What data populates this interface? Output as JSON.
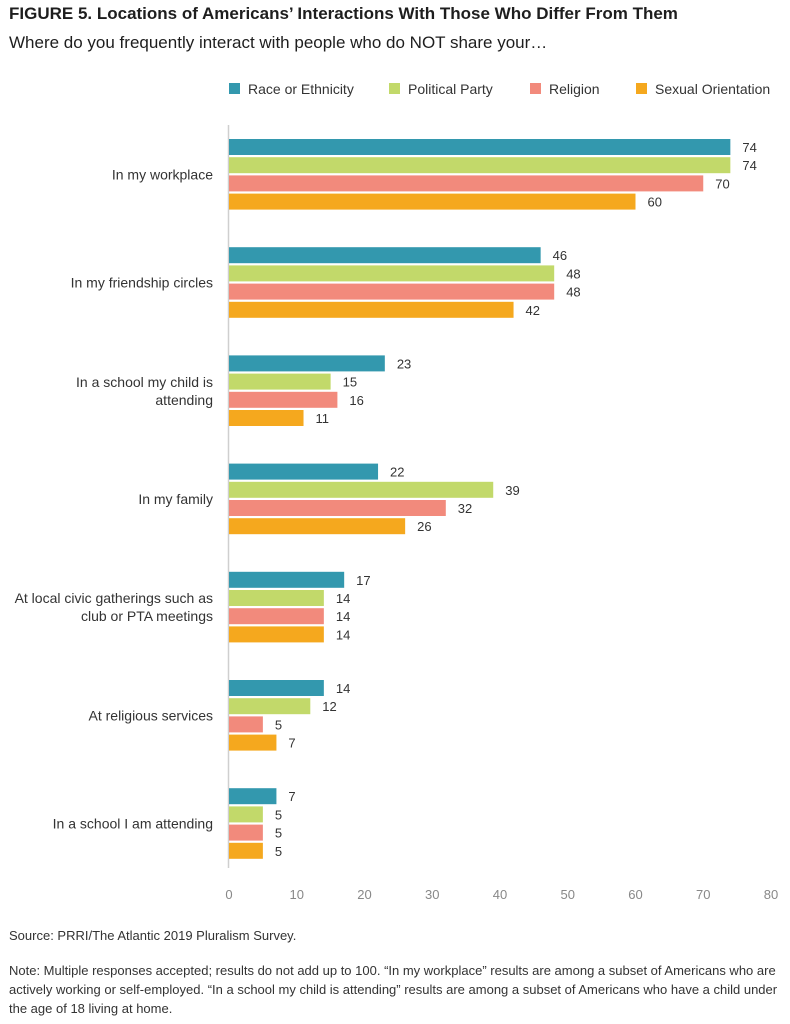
{
  "title": "FIGURE 5. Locations of Americans’ Interactions With Those Who Differ From Them",
  "subtitle": "Where do you frequently interact with people who do NOT share your…",
  "source": "Source: PRRI/The Atlantic 2019 Pluralism Survey.",
  "note": "Note: Multiple responses accepted; results do not add up to 100. “In my workplace” results are among a subset of Americans who are actively working or self-employed. “In a school my child is attending” results are among a subset of Americans who have a child under the age of 18 living at home.",
  "chart_data": {
    "type": "bar",
    "orientation": "horizontal",
    "categories": [
      [
        "In my workplace"
      ],
      [
        "In my friendship circles"
      ],
      [
        "In a school my child is",
        "attending"
      ],
      [
        "In my family"
      ],
      [
        "At local civic gatherings such as",
        "club or PTA meetings"
      ],
      [
        "At religious services"
      ],
      [
        "In a school I am attending"
      ]
    ],
    "series": [
      {
        "name": "Race or Ethnicity",
        "color": "#3398ae",
        "values": [
          74,
          46,
          23,
          22,
          17,
          14,
          7
        ]
      },
      {
        "name": "Political Party",
        "color": "#c2d96a",
        "values": [
          74,
          48,
          15,
          39,
          14,
          12,
          5
        ]
      },
      {
        "name": "Religion",
        "color": "#f28a7c",
        "values": [
          70,
          48,
          16,
          32,
          14,
          5,
          5
        ]
      },
      {
        "name": "Sexual Orientation",
        "color": "#f5a81e",
        "values": [
          60,
          42,
          11,
          26,
          14,
          7,
          5
        ]
      }
    ],
    "xlim": [
      0,
      80
    ],
    "xticks": [
      0,
      10,
      20,
      30,
      40,
      50,
      60,
      70,
      80
    ],
    "legend": "top",
    "grid": false
  }
}
